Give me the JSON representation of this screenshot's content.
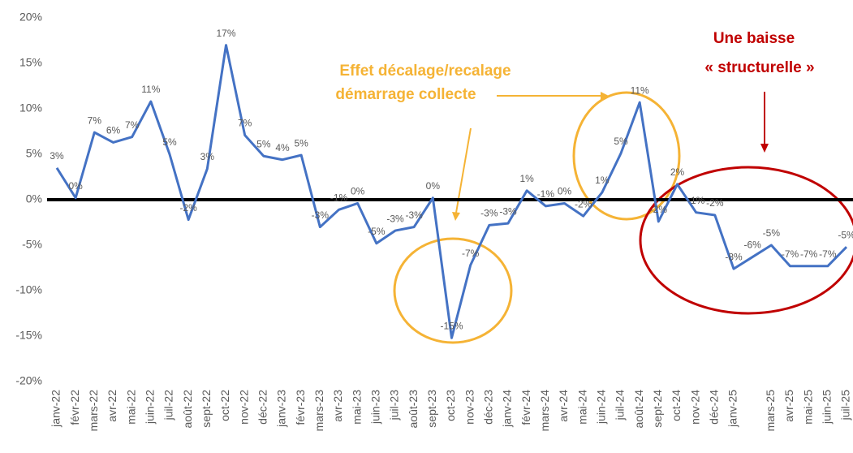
{
  "chart_data": {
    "type": "line",
    "categories": [
      "janv-22",
      "févr-22",
      "mars-22",
      "avr-22",
      "mai-22",
      "juin-22",
      "juil-22",
      "août-22",
      "sept-22",
      "oct-22",
      "nov-22",
      "déc-22",
      "janv-23",
      "févr-23",
      "mars-23",
      "avr-23",
      "mai-23",
      "juin-23",
      "juil-23",
      "août-23",
      "sept-23",
      "oct-23",
      "nov-23",
      "déc-23",
      "janv-24",
      "févr-24",
      "mars-24",
      "avr-24",
      "mai-24",
      "juin-24",
      "juil-24",
      "août-24",
      "sept-24",
      "oct-24",
      "nov-24",
      "déc-24",
      "janv-25",
      null,
      "mars-25",
      "avr-25",
      "mai-25",
      "juin-25",
      "juil-25"
    ],
    "series": [
      {
        "color": "#4472c4",
        "values": [
          3.5,
          0.2,
          7.4,
          6.3,
          6.9,
          10.8,
          5.0,
          -2.2,
          3.4,
          17,
          7.1,
          4.8,
          4.4,
          4.9,
          -3.0,
          -1.1,
          -0.4,
          -4.8,
          -3.4,
          -3.0,
          0.2,
          -15.2,
          -7.2,
          -2.8,
          -2.6,
          1.0,
          -0.7,
          -0.4,
          -1.8,
          0.8,
          5.1,
          10.7,
          -2.4,
          1.7,
          -1.4,
          -1.7,
          -7.6,
          -6.3,
          -5.0,
          -7.3,
          -7.3,
          -7.3,
          -5.2
        ],
        "value_labels": [
          "3%",
          "0%",
          "7%",
          "6%",
          "7%",
          "11%",
          "5%",
          "-2%",
          "3%",
          "17%",
          "7%",
          "5%",
          "4%",
          "5%",
          "-3%",
          "-1%",
          "0%",
          "-5%",
          "-3%",
          "-3%",
          "0%",
          "-15%",
          "-7%",
          "-3%",
          "-3%",
          "1%",
          "-1%",
          "0%",
          "-2%",
          "1%",
          "5%",
          "11%",
          "-2%",
          "2%",
          "-1%",
          "-2%",
          "-8%",
          "-6%",
          "-5%",
          "-7%",
          "-7%",
          "-7%",
          "-5%"
        ]
      }
    ],
    "ylim": [
      -20,
      20
    ],
    "yticks": [
      {
        "value": -20,
        "label": "-20%"
      },
      {
        "value": -15,
        "label": "-15%"
      },
      {
        "value": -10,
        "label": "-10%"
      },
      {
        "value": -5,
        "label": "-5%"
      },
      {
        "value": 0,
        "label": "0%"
      },
      {
        "value": 5,
        "label": "5%"
      },
      {
        "value": 10,
        "label": "10%"
      },
      {
        "value": 15,
        "label": "15%"
      },
      {
        "value": 20,
        "label": "20%"
      }
    ],
    "annotations": [
      {
        "lines": [
          "Effet décalage/recalage",
          "démarrage collecte"
        ],
        "color": "#f5b335"
      },
      {
        "lines": [
          "Une baisse",
          "« structurelle »"
        ],
        "color": "#c00000"
      }
    ]
  }
}
